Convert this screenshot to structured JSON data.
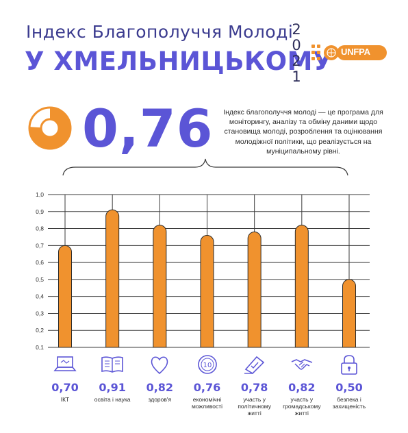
{
  "header": {
    "title_line1": "Індекс Благополуччя Молоді",
    "title_line2": "У ХМЕЛЬНИЦЬКОМУ",
    "year_digits": [
      "2",
      "0",
      "2",
      "1"
    ],
    "logo_text": "UNFPA"
  },
  "summary": {
    "index_value": "0,76",
    "description": "Індекс благополуччя молоді — це програма для моніторингу, аналізу та обміну даними щодо становища молоді, розроблення та оцінювання молодіжної політики, що реалізується на муніципальному рівні."
  },
  "colors": {
    "accent": "#f0922e",
    "title": "#5b55d6",
    "grid": "#3a3a3a"
  },
  "chart_data": {
    "type": "bar",
    "ylim": [
      0.1,
      1.0
    ],
    "y_ticks": [
      "0,1",
      "0,2",
      "0,3",
      "0,4",
      "0,5",
      "0,6",
      "0,7",
      "0,8",
      "0,9",
      "1,0"
    ],
    "grid": true,
    "categories": [
      "ІКТ",
      "освіта і наука",
      "здоров'я",
      "економічні можливості",
      "участь у політичному житті",
      "участь у громадському житті",
      "безпека і захищеність"
    ],
    "category_lines": [
      [
        "ІКТ"
      ],
      [
        "освіта і наука"
      ],
      [
        "здоров'я"
      ],
      [
        "економічні",
        "можливості"
      ],
      [
        "участь у",
        "політичному",
        "житті"
      ],
      [
        "участь у",
        "громадському",
        "житті"
      ],
      [
        "безпека і",
        "захищеність"
      ]
    ],
    "values": [
      0.7,
      0.91,
      0.82,
      0.76,
      0.78,
      0.82,
      0.5
    ],
    "value_labels": [
      "0,70",
      "0,91",
      "0,82",
      "0,76",
      "0,78",
      "0,82",
      "0,50"
    ],
    "icons": [
      "laptop-icon",
      "book-icon",
      "heart-icon",
      "coin-icon",
      "ballot-icon",
      "handshake-icon",
      "padlock-icon"
    ]
  }
}
